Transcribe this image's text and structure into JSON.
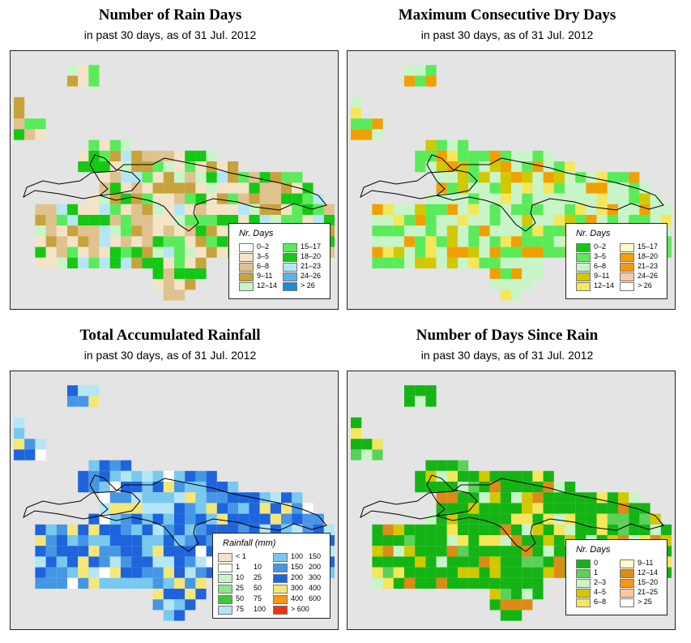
{
  "panels": [
    {
      "id": "rain-days",
      "title": "Number of Rain Days",
      "subtitle": "in past 30 days, as of  31 Jul. 2012",
      "legend": {
        "title": "Nr. Days",
        "items": [
          {
            "label": "0–2",
            "color": "#ffffff"
          },
          {
            "label": "3–5",
            "color": "#f5e3c8"
          },
          {
            "label": "6–8",
            "color": "#dfc28e"
          },
          {
            "label": "9–11",
            "color": "#c8a23c"
          },
          {
            "label": "12–14",
            "color": "#c8f5c8"
          },
          {
            "label": "15–17",
            "color": "#5aeb5a"
          },
          {
            "label": "18–20",
            "color": "#14c814"
          },
          {
            "label": "21–23",
            "color": "#b4e6f5"
          },
          {
            "label": "24–26",
            "color": "#5ab4eb"
          },
          {
            "label": "> 26",
            "color": "#1e8cd2"
          }
        ]
      }
    },
    {
      "id": "max-dry-days",
      "title": "Maximum Consecutive Dry Days",
      "subtitle": "in past 30 days, as of  31 Jul. 2012",
      "legend": {
        "title": "Nr. Days",
        "items": [
          {
            "label": "0–2",
            "color": "#14c814"
          },
          {
            "label": "3–5",
            "color": "#5aeb5a"
          },
          {
            "label": "6–8",
            "color": "#c8f5c8"
          },
          {
            "label": "9–11",
            "color": "#d2c800"
          },
          {
            "label": "12–14",
            "color": "#f5e65a"
          },
          {
            "label": "15–17",
            "color": "#fffac8"
          },
          {
            "label": "18–20",
            "color": "#f0a000"
          },
          {
            "label": "21–23",
            "color": "#f59614"
          },
          {
            "label": "24–26",
            "color": "#fac8a0"
          },
          {
            "label": "> 26",
            "color": "#ffffff"
          }
        ]
      }
    },
    {
      "id": "total-rainfall",
      "title": "Total Accumulated Rainfall",
      "subtitle": "in past 30 days, as of  31 Jul. 2012",
      "legend": {
        "title": "Rainfall (mm)",
        "items": [
          {
            "label": "< 1",
            "label2": "",
            "color": "#f5e3c8"
          },
          {
            "label": "1",
            "label2": "10",
            "color": "#ffffff"
          },
          {
            "label": "10",
            "label2": "25",
            "color": "#c8f5c8"
          },
          {
            "label": "25",
            "label2": "50",
            "color": "#8ce68c"
          },
          {
            "label": "50",
            "label2": "75",
            "color": "#3cc83c"
          },
          {
            "label": "75",
            "label2": "100",
            "color": "#b4e6f5"
          },
          {
            "label": "100",
            "label2": "150",
            "color": "#78c8f0"
          },
          {
            "label": "150",
            "label2": "200",
            "color": "#4696e6"
          },
          {
            "label": "200",
            "label2": "300",
            "color": "#1e64dc"
          },
          {
            "label": "300",
            "label2": "400",
            "color": "#f5e678"
          },
          {
            "label": "400",
            "label2": "600",
            "color": "#fa9614"
          },
          {
            "label": "> 600",
            "label2": "",
            "color": "#f03214"
          }
        ]
      }
    },
    {
      "id": "days-since-rain",
      "title": "Number of Days Since Rain",
      "subtitle": "in past 30 days, as of  31 Jul. 2012",
      "legend": {
        "title": "Nr. Days",
        "items": [
          {
            "label": "0",
            "color": "#14b414"
          },
          {
            "label": "1",
            "color": "#5ad25a"
          },
          {
            "label": "2–3",
            "color": "#c8f5c8"
          },
          {
            "label": "4–5",
            "color": "#d2c800"
          },
          {
            "label": "6–8",
            "color": "#f5e65a"
          },
          {
            "label": "9–11",
            "color": "#fffac8"
          },
          {
            "label": "12–14",
            "color": "#dc8c14"
          },
          {
            "label": "15–20",
            "color": "#f59614"
          },
          {
            "label": "21–25",
            "color": "#fac8a0"
          },
          {
            "label": "> 25",
            "color": "#ffffff"
          }
        ]
      }
    }
  ]
}
